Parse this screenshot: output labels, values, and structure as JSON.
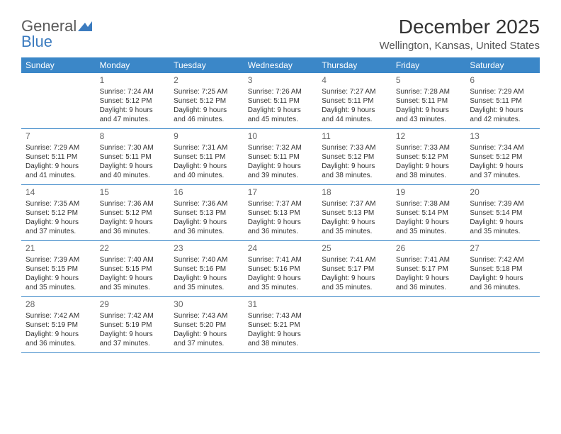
{
  "logo": {
    "text1": "General",
    "text2": "Blue"
  },
  "title": "December 2025",
  "location": "Wellington, Kansas, United States",
  "day_names": [
    "Sunday",
    "Monday",
    "Tuesday",
    "Wednesday",
    "Thursday",
    "Friday",
    "Saturday"
  ],
  "colors": {
    "header_bg": "#3b87c8",
    "header_text": "#ffffff",
    "border": "#3b87c8",
    "logo_gray": "#5a5a5a",
    "logo_blue": "#3b7bbf"
  },
  "weeks": [
    [
      null,
      {
        "d": "1",
        "sr": "Sunrise: 7:24 AM",
        "ss": "Sunset: 5:12 PM",
        "dl1": "Daylight: 9 hours",
        "dl2": "and 47 minutes."
      },
      {
        "d": "2",
        "sr": "Sunrise: 7:25 AM",
        "ss": "Sunset: 5:12 PM",
        "dl1": "Daylight: 9 hours",
        "dl2": "and 46 minutes."
      },
      {
        "d": "3",
        "sr": "Sunrise: 7:26 AM",
        "ss": "Sunset: 5:11 PM",
        "dl1": "Daylight: 9 hours",
        "dl2": "and 45 minutes."
      },
      {
        "d": "4",
        "sr": "Sunrise: 7:27 AM",
        "ss": "Sunset: 5:11 PM",
        "dl1": "Daylight: 9 hours",
        "dl2": "and 44 minutes."
      },
      {
        "d": "5",
        "sr": "Sunrise: 7:28 AM",
        "ss": "Sunset: 5:11 PM",
        "dl1": "Daylight: 9 hours",
        "dl2": "and 43 minutes."
      },
      {
        "d": "6",
        "sr": "Sunrise: 7:29 AM",
        "ss": "Sunset: 5:11 PM",
        "dl1": "Daylight: 9 hours",
        "dl2": "and 42 minutes."
      }
    ],
    [
      {
        "d": "7",
        "sr": "Sunrise: 7:29 AM",
        "ss": "Sunset: 5:11 PM",
        "dl1": "Daylight: 9 hours",
        "dl2": "and 41 minutes."
      },
      {
        "d": "8",
        "sr": "Sunrise: 7:30 AM",
        "ss": "Sunset: 5:11 PM",
        "dl1": "Daylight: 9 hours",
        "dl2": "and 40 minutes."
      },
      {
        "d": "9",
        "sr": "Sunrise: 7:31 AM",
        "ss": "Sunset: 5:11 PM",
        "dl1": "Daylight: 9 hours",
        "dl2": "and 40 minutes."
      },
      {
        "d": "10",
        "sr": "Sunrise: 7:32 AM",
        "ss": "Sunset: 5:11 PM",
        "dl1": "Daylight: 9 hours",
        "dl2": "and 39 minutes."
      },
      {
        "d": "11",
        "sr": "Sunrise: 7:33 AM",
        "ss": "Sunset: 5:12 PM",
        "dl1": "Daylight: 9 hours",
        "dl2": "and 38 minutes."
      },
      {
        "d": "12",
        "sr": "Sunrise: 7:33 AM",
        "ss": "Sunset: 5:12 PM",
        "dl1": "Daylight: 9 hours",
        "dl2": "and 38 minutes."
      },
      {
        "d": "13",
        "sr": "Sunrise: 7:34 AM",
        "ss": "Sunset: 5:12 PM",
        "dl1": "Daylight: 9 hours",
        "dl2": "and 37 minutes."
      }
    ],
    [
      {
        "d": "14",
        "sr": "Sunrise: 7:35 AM",
        "ss": "Sunset: 5:12 PM",
        "dl1": "Daylight: 9 hours",
        "dl2": "and 37 minutes."
      },
      {
        "d": "15",
        "sr": "Sunrise: 7:36 AM",
        "ss": "Sunset: 5:12 PM",
        "dl1": "Daylight: 9 hours",
        "dl2": "and 36 minutes."
      },
      {
        "d": "16",
        "sr": "Sunrise: 7:36 AM",
        "ss": "Sunset: 5:13 PM",
        "dl1": "Daylight: 9 hours",
        "dl2": "and 36 minutes."
      },
      {
        "d": "17",
        "sr": "Sunrise: 7:37 AM",
        "ss": "Sunset: 5:13 PM",
        "dl1": "Daylight: 9 hours",
        "dl2": "and 36 minutes."
      },
      {
        "d": "18",
        "sr": "Sunrise: 7:37 AM",
        "ss": "Sunset: 5:13 PM",
        "dl1": "Daylight: 9 hours",
        "dl2": "and 35 minutes."
      },
      {
        "d": "19",
        "sr": "Sunrise: 7:38 AM",
        "ss": "Sunset: 5:14 PM",
        "dl1": "Daylight: 9 hours",
        "dl2": "and 35 minutes."
      },
      {
        "d": "20",
        "sr": "Sunrise: 7:39 AM",
        "ss": "Sunset: 5:14 PM",
        "dl1": "Daylight: 9 hours",
        "dl2": "and 35 minutes."
      }
    ],
    [
      {
        "d": "21",
        "sr": "Sunrise: 7:39 AM",
        "ss": "Sunset: 5:15 PM",
        "dl1": "Daylight: 9 hours",
        "dl2": "and 35 minutes."
      },
      {
        "d": "22",
        "sr": "Sunrise: 7:40 AM",
        "ss": "Sunset: 5:15 PM",
        "dl1": "Daylight: 9 hours",
        "dl2": "and 35 minutes."
      },
      {
        "d": "23",
        "sr": "Sunrise: 7:40 AM",
        "ss": "Sunset: 5:16 PM",
        "dl1": "Daylight: 9 hours",
        "dl2": "and 35 minutes."
      },
      {
        "d": "24",
        "sr": "Sunrise: 7:41 AM",
        "ss": "Sunset: 5:16 PM",
        "dl1": "Daylight: 9 hours",
        "dl2": "and 35 minutes."
      },
      {
        "d": "25",
        "sr": "Sunrise: 7:41 AM",
        "ss": "Sunset: 5:17 PM",
        "dl1": "Daylight: 9 hours",
        "dl2": "and 35 minutes."
      },
      {
        "d": "26",
        "sr": "Sunrise: 7:41 AM",
        "ss": "Sunset: 5:17 PM",
        "dl1": "Daylight: 9 hours",
        "dl2": "and 36 minutes."
      },
      {
        "d": "27",
        "sr": "Sunrise: 7:42 AM",
        "ss": "Sunset: 5:18 PM",
        "dl1": "Daylight: 9 hours",
        "dl2": "and 36 minutes."
      }
    ],
    [
      {
        "d": "28",
        "sr": "Sunrise: 7:42 AM",
        "ss": "Sunset: 5:19 PM",
        "dl1": "Daylight: 9 hours",
        "dl2": "and 36 minutes."
      },
      {
        "d": "29",
        "sr": "Sunrise: 7:42 AM",
        "ss": "Sunset: 5:19 PM",
        "dl1": "Daylight: 9 hours",
        "dl2": "and 37 minutes."
      },
      {
        "d": "30",
        "sr": "Sunrise: 7:43 AM",
        "ss": "Sunset: 5:20 PM",
        "dl1": "Daylight: 9 hours",
        "dl2": "and 37 minutes."
      },
      {
        "d": "31",
        "sr": "Sunrise: 7:43 AM",
        "ss": "Sunset: 5:21 PM",
        "dl1": "Daylight: 9 hours",
        "dl2": "and 38 minutes."
      },
      null,
      null,
      null
    ]
  ]
}
